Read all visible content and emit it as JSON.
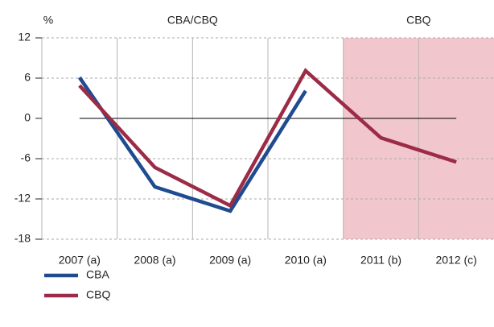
{
  "chart_data": {
    "type": "line",
    "unit_label": "%",
    "annotations": [
      "CBA/CBQ",
      "CBQ"
    ],
    "categories": [
      "2007 (a)",
      "2008 (a)",
      "2009 (a)",
      "2010 (a)",
      "2011 (b)",
      "2012 (c)"
    ],
    "series": [
      {
        "name": "CBA",
        "color": "#1f4b91",
        "values": [
          6.1,
          -10.2,
          -13.8,
          4.1,
          null,
          null
        ]
      },
      {
        "name": "CBQ",
        "color": "#9c2b47",
        "values": [
          4.9,
          -7.3,
          -13,
          7.1,
          -2.9,
          -6.5
        ]
      }
    ],
    "ylim": [
      -18,
      12
    ],
    "yticks": [
      -18,
      -12,
      -6,
      0,
      6,
      12
    ],
    "shade_from": "2011 (b)",
    "shade_color": "#f2c6cd",
    "grid": true
  }
}
